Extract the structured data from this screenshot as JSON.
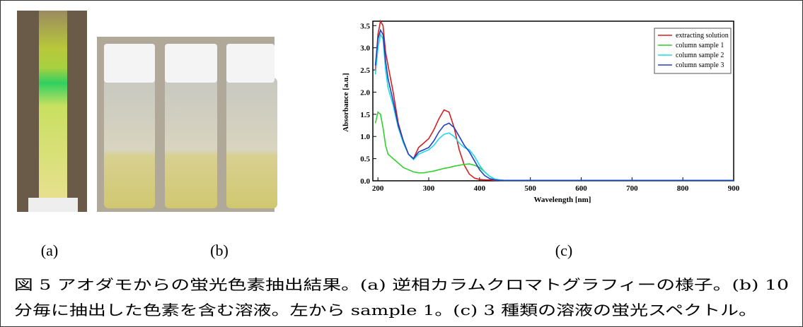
{
  "panel_labels": [
    "(a)",
    "(b)",
    "(c)"
  ],
  "caption": [
    "図 5 アオダモからの蛍光色素抽出結果。(a) 逆相カラムクロマトグラフィーの様子。(b) 10",
    "分毎に抽出した色素を含む溶液。左から sample 1。(c) 3 種類の溶液の蛍光スペクトル。"
  ],
  "chart_data": {
    "type": "line",
    "x_label": "Wavelength [nm]",
    "y_label": "Absorbance [a.u.]",
    "x": [
      195,
      200,
      205,
      210,
      215,
      220,
      230,
      240,
      250,
      260,
      270,
      280,
      290,
      300,
      310,
      320,
      330,
      340,
      350,
      360,
      370,
      380,
      390,
      400,
      410,
      420,
      430,
      440,
      450,
      500,
      600,
      700,
      800,
      900
    ],
    "series": [
      {
        "name": "extracting solution",
        "color": "#d42020",
        "values": [
          2.5,
          3.3,
          3.6,
          3.5,
          2.9,
          2.6,
          2.0,
          1.3,
          0.9,
          0.6,
          0.5,
          0.75,
          0.85,
          0.95,
          1.15,
          1.4,
          1.6,
          1.55,
          1.2,
          0.7,
          0.35,
          0.15,
          0.06,
          0.03,
          0.02,
          0.02,
          0.01,
          0.01,
          0.01,
          0.01,
          0.01,
          0.01,
          0.01,
          0.01
        ]
      },
      {
        "name": "column sample 1",
        "color": "#30d030",
        "values": [
          1.3,
          1.55,
          1.5,
          1.2,
          0.8,
          0.6,
          0.5,
          0.4,
          0.3,
          0.25,
          0.2,
          0.18,
          0.18,
          0.2,
          0.22,
          0.25,
          0.28,
          0.3,
          0.33,
          0.35,
          0.37,
          0.38,
          0.35,
          0.3,
          0.2,
          0.1,
          0.03,
          0.01,
          0.01,
          0.01,
          0.01,
          0.01,
          0.01,
          0.01
        ]
      },
      {
        "name": "column sample 2",
        "color": "#20d8e8",
        "values": [
          2.4,
          3.0,
          3.3,
          3.2,
          2.5,
          2.1,
          1.7,
          1.2,
          0.85,
          0.6,
          0.48,
          0.6,
          0.65,
          0.7,
          0.8,
          0.95,
          1.05,
          1.08,
          1.0,
          0.85,
          0.75,
          0.7,
          0.55,
          0.35,
          0.2,
          0.1,
          0.04,
          0.02,
          0.01,
          0.01,
          0.01,
          0.01,
          0.01,
          0.01
        ]
      },
      {
        "name": "column sample 3",
        "color": "#2040c0",
        "values": [
          2.6,
          3.2,
          3.4,
          3.3,
          2.7,
          2.3,
          1.8,
          1.25,
          0.9,
          0.6,
          0.5,
          0.65,
          0.7,
          0.75,
          0.9,
          1.1,
          1.25,
          1.3,
          1.2,
          1.0,
          0.8,
          0.65,
          0.45,
          0.25,
          0.12,
          0.05,
          0.02,
          0.01,
          0.01,
          0.01,
          0.01,
          0.01,
          0.01,
          0.01
        ]
      }
    ],
    "xlim": [
      190,
      900
    ],
    "ylim": [
      0,
      3.6
    ],
    "xticks": [
      200,
      300,
      400,
      500,
      600,
      700,
      800,
      900
    ],
    "yticks": [
      {
        "value": 0,
        "label": "0.0"
      },
      0.5,
      {
        "value": 1,
        "label": "1.0"
      },
      1.5,
      {
        "value": 2,
        "label": "2.0"
      },
      2.5,
      {
        "value": 3,
        "label": "3.0"
      },
      3.5
    ],
    "legend": "upper right"
  }
}
